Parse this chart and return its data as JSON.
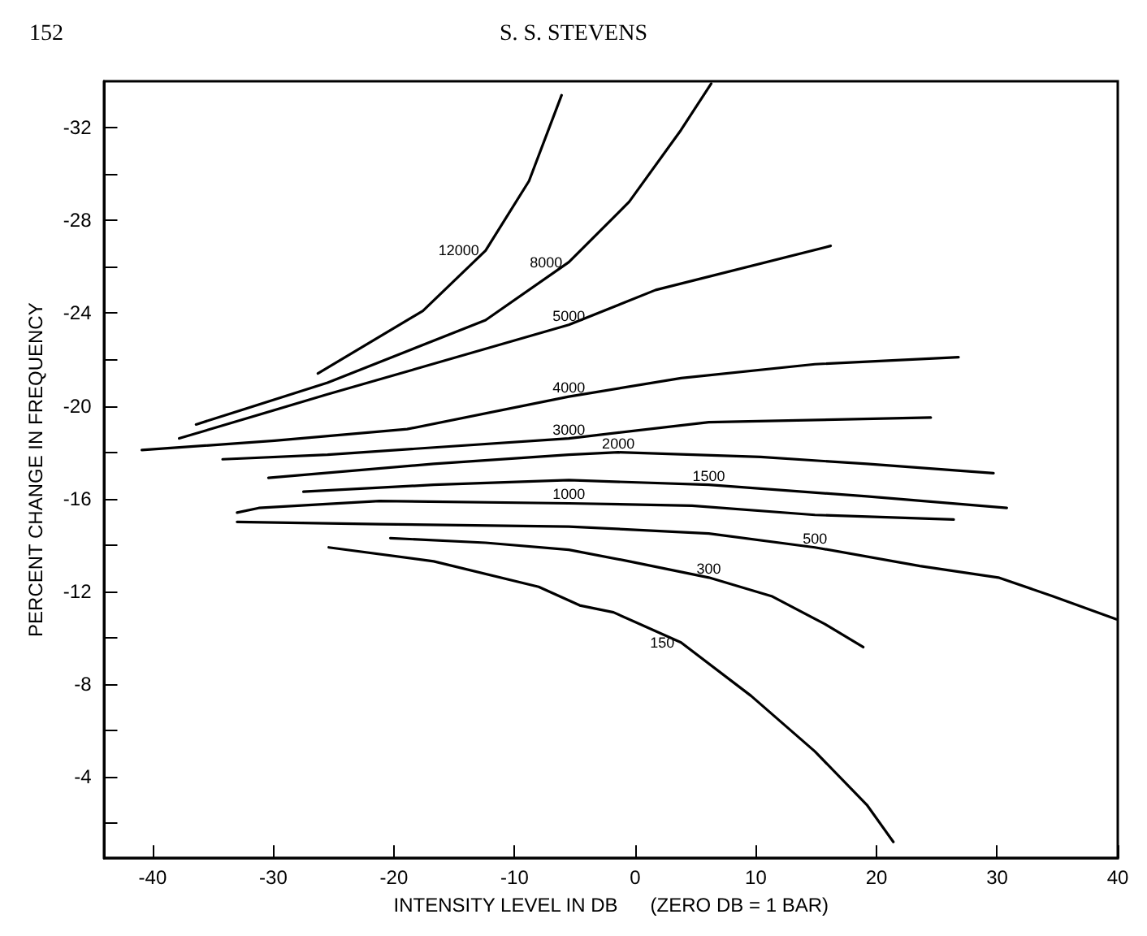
{
  "chart_data": {
    "type": "line",
    "annotations": [
      "152",
      "S. S. STEVENS"
    ],
    "xlabel": "INTENSITY LEVEL IN DB      (ZERO DB = 1 BAR)",
    "ylabel": "PERCENT CHANGE IN FREQUENCY",
    "xlim": [
      -44,
      40
    ],
    "xticks": [
      -40,
      -30,
      -20,
      -10,
      0,
      10,
      20,
      30,
      40
    ],
    "ylim": [
      -0.5,
      -34
    ],
    "yticks": [
      {
        "value": -2,
        "label": null
      },
      -4,
      {
        "value": -6,
        "label": null
      },
      -8,
      {
        "value": -10,
        "label": null
      },
      -12,
      {
        "value": -14,
        "label": null
      },
      -16,
      {
        "value": -18,
        "label": null
      },
      -20,
      {
        "value": -22,
        "label": null
      },
      -24,
      {
        "value": -26,
        "label": null
      },
      -28,
      {
        "value": -30,
        "label": null
      },
      -32
    ],
    "grid": false,
    "legend": false,
    "marker": "none",
    "line_style": "solid",
    "series": [
      {
        "name": "150",
        "color": "#000000",
        "x": [
          -25.4,
          -16.7,
          -8.0,
          -4.6,
          -1.8,
          3.8,
          9.6,
          14.9,
          19.2,
          21.4
        ],
        "values": [
          -13.9,
          -13.3,
          -12.2,
          -11.4,
          -11.1,
          -9.8,
          -7.5,
          -5.1,
          -2.8,
          -1.2
        ]
      },
      {
        "name": "300",
        "color": "#000000",
        "x": [
          -20.3,
          -12.4,
          -5.5,
          -0.5,
          6.1,
          11.3,
          15.7,
          18.9
        ],
        "values": [
          -14.3,
          -14.1,
          -13.8,
          -13.3,
          -12.6,
          -11.8,
          -10.6,
          -9.6
        ]
      },
      {
        "name": "500",
        "color": "#000000",
        "x": [
          -33.0,
          -21.2,
          -5.5,
          6.1,
          14.9,
          23.6,
          30.1,
          34.6,
          39.9
        ],
        "values": [
          -15.0,
          -14.9,
          -14.8,
          -14.5,
          -13.9,
          -13.1,
          -12.6,
          -11.8,
          -10.8
        ]
      },
      {
        "name": "1000",
        "color": "#000000",
        "x": [
          -33.0,
          -31.2,
          -21.2,
          -5.5,
          4.7,
          14.9,
          26.4
        ],
        "values": [
          -15.4,
          -15.6,
          -15.9,
          -15.8,
          -15.7,
          -15.3,
          -15.1
        ]
      },
      {
        "name": "1500",
        "color": "#000000",
        "x": [
          -27.5,
          -16.7,
          -5.5,
          6.1,
          19.2,
          30.8
        ],
        "values": [
          -16.3,
          -16.6,
          -16.8,
          -16.6,
          -16.1,
          -15.6
        ]
      },
      {
        "name": "2000",
        "color": "#000000",
        "x": [
          -30.4,
          -16.7,
          -5.5,
          -1.4,
          10.4,
          19.2,
          29.7
        ],
        "values": [
          -16.9,
          -17.5,
          -17.9,
          -18.0,
          -17.8,
          -17.5,
          -17.1
        ]
      },
      {
        "name": "3000",
        "color": "#000000",
        "x": [
          -34.2,
          -25.5,
          -5.5,
          6.1,
          24.5
        ],
        "values": [
          -17.7,
          -17.9,
          -18.6,
          -19.3,
          -19.5
        ]
      },
      {
        "name": "4000",
        "color": "#000000",
        "x": [
          -40.9,
          -29.9,
          -18.9,
          -5.5,
          3.8,
          14.9,
          26.8
        ],
        "values": [
          -18.1,
          -18.5,
          -19.0,
          -20.4,
          -21.2,
          -21.8,
          -22.1
        ]
      },
      {
        "name": "5000",
        "color": "#000000",
        "x": [
          -37.8,
          -25.5,
          -5.5,
          1.7,
          16.2
        ],
        "values": [
          -18.6,
          -20.5,
          -23.5,
          -25.0,
          -26.9
        ]
      },
      {
        "name": "8000",
        "color": "#000000",
        "x": [
          -36.4,
          -25.5,
          -12.4,
          -5.5,
          -0.5,
          3.8,
          6.3
        ],
        "values": [
          -19.2,
          -21.0,
          -23.7,
          -26.2,
          -28.8,
          -31.9,
          -33.9
        ]
      },
      {
        "name": "12000",
        "color": "#000000",
        "x": [
          -26.3,
          -17.6,
          -12.4,
          -8.8,
          -6.1
        ],
        "values": [
          -21.4,
          -24.1,
          -26.7,
          -29.7,
          -33.4
        ]
      }
    ]
  }
}
